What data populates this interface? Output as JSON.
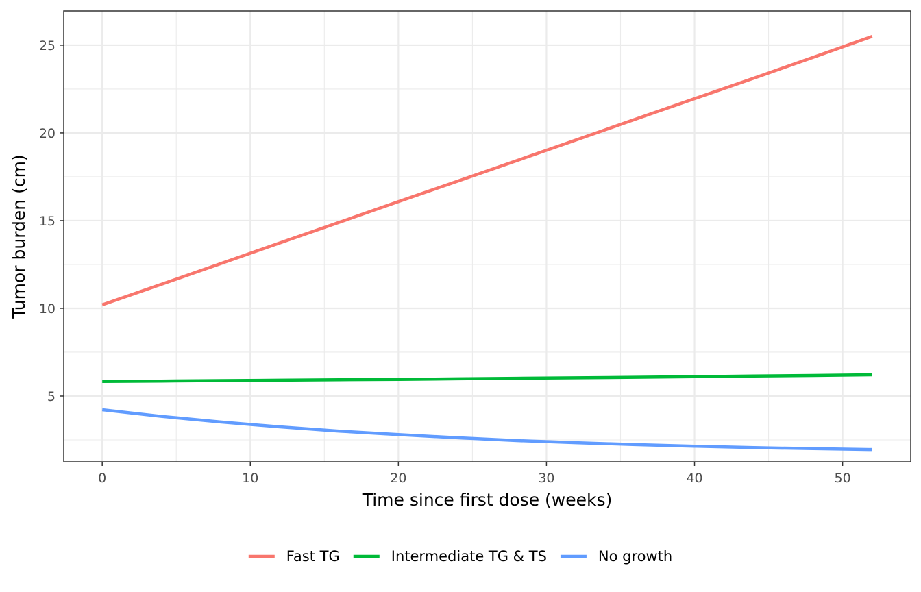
{
  "chart_data": {
    "type": "line",
    "title": "",
    "xlabel": "Time since first dose (weeks)",
    "ylabel": "Tumor burden (cm)",
    "xlim": [
      -2.6,
      54.6
    ],
    "ylim": [
      1.25,
      26.95
    ],
    "x_ticks": [
      0,
      10,
      20,
      30,
      40,
      50
    ],
    "y_ticks": [
      5,
      10,
      15,
      20,
      25
    ],
    "x_minor": [
      5,
      15,
      25,
      35,
      45
    ],
    "y_minor": [
      2.5,
      7.5,
      12.5,
      17.5,
      22.5
    ],
    "grid": true,
    "legend_position": "bottom",
    "series": [
      {
        "name": "Fast TG",
        "color": "#F8766D",
        "x": [
          0,
          4,
          8,
          12,
          16,
          20,
          24,
          28,
          32,
          36,
          40,
          44,
          48,
          52
        ],
        "y": [
          10.2,
          11.37,
          12.55,
          13.73,
          14.9,
          16.08,
          17.25,
          18.42,
          19.6,
          20.78,
          21.95,
          23.12,
          24.3,
          25.5
        ]
      },
      {
        "name": "Intermediate TG & TS",
        "color": "#00BA38",
        "x": [
          0,
          4,
          8,
          12,
          16,
          20,
          24,
          28,
          32,
          36,
          40,
          44,
          48,
          52
        ],
        "y": [
          5.83,
          5.85,
          5.88,
          5.9,
          5.93,
          5.95,
          5.98,
          6.01,
          6.04,
          6.07,
          6.1,
          6.14,
          6.17,
          6.21
        ]
      },
      {
        "name": "No growth",
        "color": "#619CFF",
        "x": [
          0,
          4,
          8,
          12,
          16,
          20,
          24,
          28,
          32,
          36,
          40,
          44,
          48,
          52
        ],
        "y": [
          4.22,
          3.84,
          3.52,
          3.24,
          3.0,
          2.8,
          2.62,
          2.46,
          2.34,
          2.23,
          2.14,
          2.06,
          2.0,
          1.95
        ]
      }
    ]
  }
}
